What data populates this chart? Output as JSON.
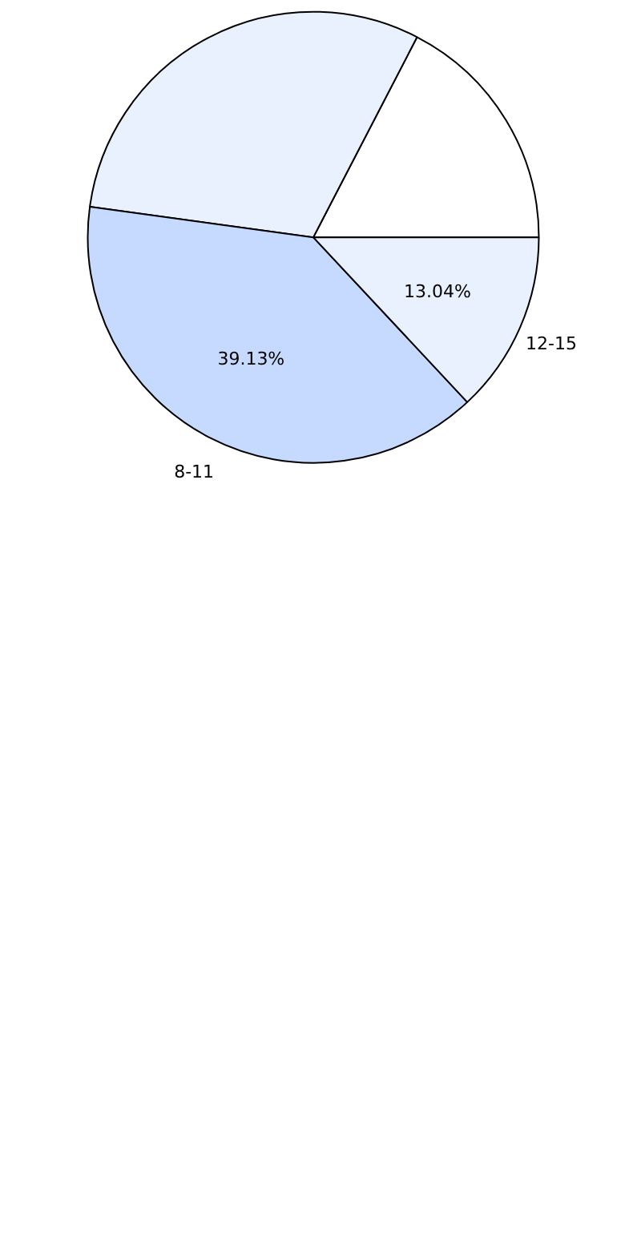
{
  "chart_data": {
    "type": "pie",
    "categories": [
      null,
      null,
      "8-11",
      "12-15"
    ],
    "values": [
      17.39,
      30.44,
      39.13,
      13.04
    ],
    "colors": [
      "#ffffff",
      "#eaf1fe",
      "#c6d9fe",
      "#eaf1fe"
    ],
    "value_labels": [
      null,
      null,
      "39.13%",
      "13.04%"
    ]
  }
}
